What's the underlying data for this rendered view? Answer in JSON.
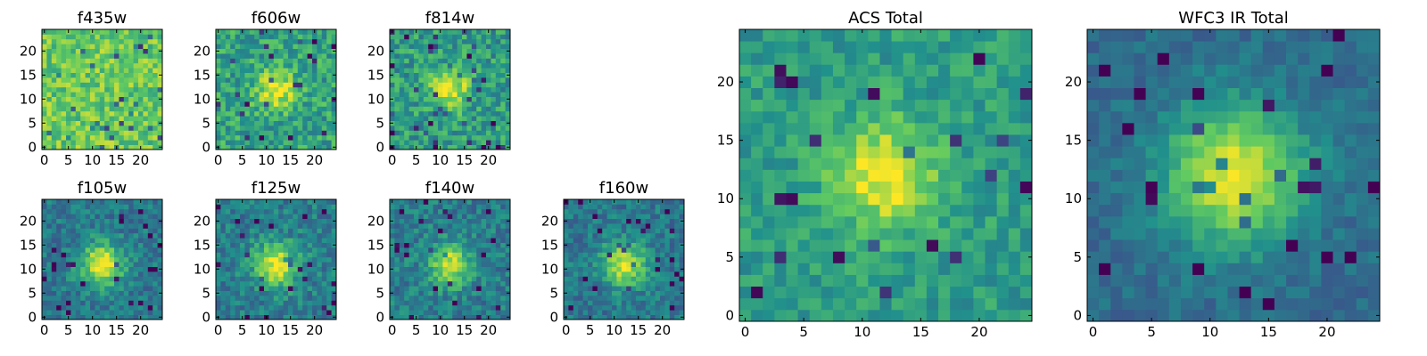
{
  "figure": {
    "colormap": "viridis",
    "colormap_stops": [
      "#440154",
      "#3b528b",
      "#21918c",
      "#5ec962",
      "#fde725"
    ]
  },
  "chart_data": [
    {
      "type": "heatmap",
      "title": "f435w",
      "grid": "25x25",
      "xlim": [
        -0.5,
        24.5
      ],
      "ylim": [
        -0.5,
        24.5
      ],
      "xticks": [
        0,
        5,
        10,
        15,
        20
      ],
      "yticks": [
        0,
        5,
        10,
        15,
        20
      ],
      "source_center": [
        12,
        12
      ],
      "source_peak": 0.0,
      "background": 0.75,
      "noise": 0.17,
      "source_sigma": 3.5
    },
    {
      "type": "heatmap",
      "title": "f606w",
      "grid": "25x25",
      "xlim": [
        -0.5,
        24.5
      ],
      "ylim": [
        -0.5,
        24.5
      ],
      "xticks": [
        0,
        5,
        10,
        15,
        20
      ],
      "yticks": [
        0,
        5,
        10,
        15,
        20
      ],
      "source_center": [
        12,
        12
      ],
      "source_peak": 0.42,
      "background": 0.58,
      "noise": 0.18,
      "source_sigma": 2.8
    },
    {
      "type": "heatmap",
      "title": "f814w",
      "grid": "25x25",
      "xlim": [
        -0.5,
        24.5
      ],
      "ylim": [
        -0.5,
        24.5
      ],
      "xticks": [
        0,
        5,
        10,
        15,
        20
      ],
      "yticks": [
        0,
        5,
        10,
        15,
        20
      ],
      "source_center": [
        12,
        12
      ],
      "source_peak": 0.45,
      "background": 0.55,
      "noise": 0.18,
      "source_sigma": 2.8
    },
    {
      "type": "heatmap",
      "title": "f105w",
      "grid": "25x25",
      "xlim": [
        -0.5,
        24.5
      ],
      "ylim": [
        -0.5,
        24.5
      ],
      "xticks": [
        0,
        5,
        10,
        15,
        20
      ],
      "yticks": [
        0,
        5,
        10,
        15,
        20
      ],
      "source_center": [
        12,
        11
      ],
      "source_peak": 0.58,
      "background": 0.4,
      "noise": 0.13,
      "source_sigma": 3.2
    },
    {
      "type": "heatmap",
      "title": "f125w",
      "grid": "25x25",
      "xlim": [
        -0.5,
        24.5
      ],
      "ylim": [
        -0.5,
        24.5
      ],
      "xticks": [
        0,
        5,
        10,
        15,
        20
      ],
      "yticks": [
        0,
        5,
        10,
        15,
        20
      ],
      "source_center": [
        12,
        11
      ],
      "source_peak": 0.55,
      "background": 0.42,
      "noise": 0.14,
      "source_sigma": 3.2
    },
    {
      "type": "heatmap",
      "title": "f140w",
      "grid": "25x25",
      "xlim": [
        -0.5,
        24.5
      ],
      "ylim": [
        -0.5,
        24.5
      ],
      "xticks": [
        0,
        5,
        10,
        15,
        20
      ],
      "yticks": [
        0,
        5,
        10,
        15,
        20
      ],
      "source_center": [
        12,
        11
      ],
      "source_peak": 0.52,
      "background": 0.42,
      "noise": 0.14,
      "source_sigma": 3.0
    },
    {
      "type": "heatmap",
      "title": "f160w",
      "grid": "25x25",
      "xlim": [
        -0.5,
        24.5
      ],
      "ylim": [
        -0.5,
        24.5
      ],
      "xticks": [
        0,
        5,
        10,
        15,
        20
      ],
      "yticks": [
        0,
        5,
        10,
        15,
        20
      ],
      "source_center": [
        12,
        11
      ],
      "source_peak": 0.55,
      "background": 0.4,
      "noise": 0.13,
      "source_sigma": 3.2
    },
    {
      "type": "heatmap",
      "title": "ACS Total",
      "grid": "25x25",
      "xlim": [
        -0.5,
        24.5
      ],
      "ylim": [
        -0.5,
        24.5
      ],
      "xticks": [
        0,
        5,
        10,
        15,
        20
      ],
      "yticks": [
        0,
        5,
        10,
        15,
        20
      ],
      "source_center": [
        12,
        12
      ],
      "source_peak": 0.45,
      "background": 0.55,
      "noise": 0.12,
      "source_sigma": 3.2
    },
    {
      "type": "heatmap",
      "title": "WFC3 IR Total",
      "grid": "25x25",
      "xlim": [
        -0.5,
        24.5
      ],
      "ylim": [
        -0.5,
        24.5
      ],
      "xticks": [
        0,
        5,
        10,
        15,
        20
      ],
      "yticks": [
        0,
        5,
        10,
        15,
        20
      ],
      "source_center": [
        12,
        12
      ],
      "source_peak": 0.62,
      "background": 0.35,
      "noise": 0.08,
      "source_sigma": 4.2
    }
  ]
}
